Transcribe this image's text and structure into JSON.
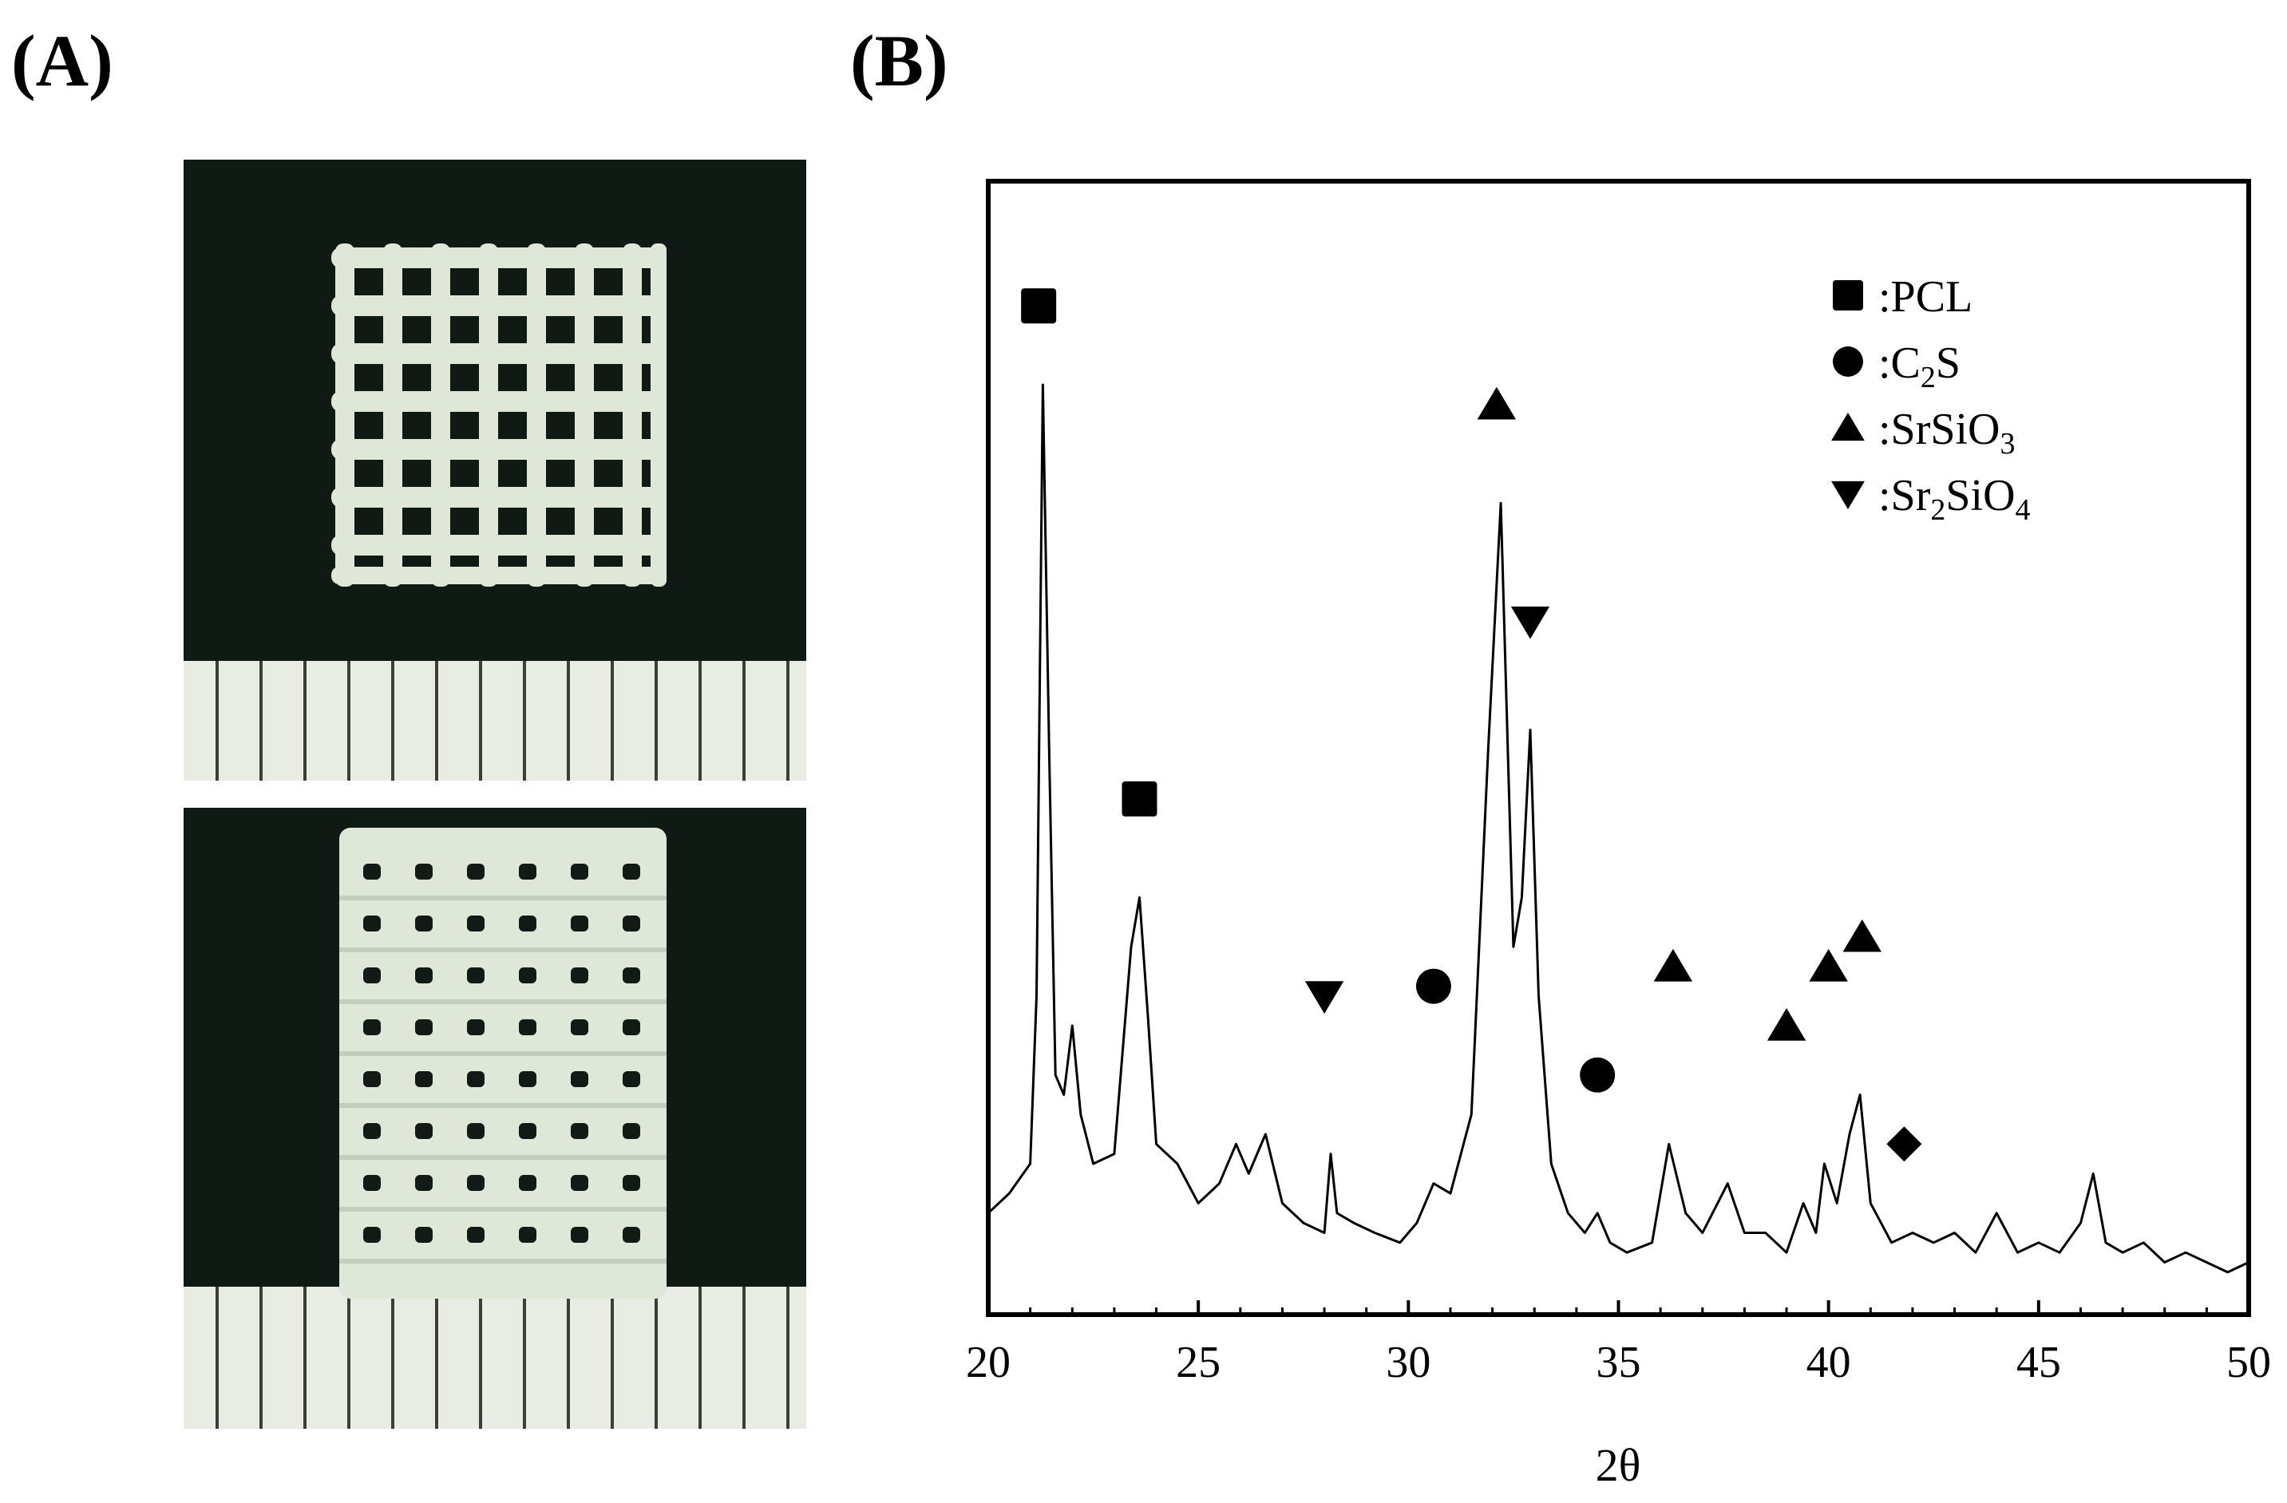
{
  "figure": {
    "panel_a_label": "(A)",
    "panel_b_label": "(B)"
  },
  "colors": {
    "photo_background": "#0f1a14",
    "scaffold": "#dfe7d9",
    "ruler": "#e8ece4",
    "plot_line": "#000000"
  },
  "chart_data": {
    "type": "line",
    "xlabel": "2θ",
    "ylabel": "",
    "xlim": [
      20,
      50
    ],
    "ylim": [
      0,
      100
    ],
    "x_ticks": [
      20,
      25,
      30,
      35,
      40,
      45,
      50
    ],
    "y_ticks_shown": false,
    "grid": false,
    "legend_position": "top-right",
    "legend": [
      {
        "marker": "square",
        "text": ":PCL"
      },
      {
        "marker": "circle",
        "text": ":C2S"
      },
      {
        "marker": "triangle-up",
        "text": ":SrSiO3"
      },
      {
        "marker": "triangle-down",
        "text": ":Sr2SiO4"
      }
    ],
    "series": [
      {
        "x": [
          20.0,
          20.5,
          21.0,
          21.15,
          21.3,
          21.45,
          21.6,
          21.8,
          22.0,
          22.2,
          22.5,
          23.0,
          23.4,
          23.6,
          23.8,
          24.0,
          24.5,
          25.0,
          25.5,
          25.9,
          26.2,
          26.6,
          27.0,
          27.5,
          28.0,
          28.15,
          28.3,
          28.7,
          29.2,
          29.8,
          30.2,
          30.6,
          31.0,
          31.5,
          31.9,
          32.2,
          32.5,
          32.7,
          32.9,
          33.1,
          33.4,
          33.8,
          34.2,
          34.5,
          34.8,
          35.2,
          35.8,
          36.2,
          36.6,
          37.0,
          37.6,
          38.0,
          38.5,
          39.0,
          39.4,
          39.7,
          39.9,
          40.2,
          40.5,
          40.75,
          41.0,
          41.5,
          42.0,
          42.5,
          43.0,
          43.5,
          44.0,
          44.5,
          45.0,
          45.5,
          46.0,
          46.3,
          46.6,
          47.0,
          47.5,
          48.0,
          48.5,
          49.0,
          49.5,
          50.0
        ],
        "y": [
          8,
          10,
          13,
          30,
          92,
          55,
          22,
          20,
          27,
          18,
          13,
          14,
          35,
          40,
          28,
          15,
          13,
          9,
          11,
          15,
          12,
          16,
          9,
          7,
          6,
          14,
          8,
          7,
          6,
          5,
          7,
          11,
          10,
          18,
          55,
          80,
          35,
          40,
          57,
          30,
          13,
          8,
          6,
          8,
          5,
          4,
          5,
          15,
          8,
          6,
          11,
          6,
          6,
          4,
          9,
          6,
          13,
          9,
          16,
          20,
          9,
          5,
          6,
          5,
          6,
          4,
          8,
          4,
          5,
          4,
          7,
          12,
          5,
          4,
          5,
          3,
          4,
          3,
          2,
          3
        ]
      }
    ],
    "annotations": [
      {
        "marker": "square",
        "x": 21.2,
        "y": 100
      },
      {
        "marker": "square",
        "x": 23.6,
        "y": 50
      },
      {
        "marker": "triangle-down",
        "x": 28.0,
        "y": 30
      },
      {
        "marker": "circle",
        "x": 30.6,
        "y": 31
      },
      {
        "marker": "triangle-up",
        "x": 32.1,
        "y": 90
      },
      {
        "marker": "triangle-down",
        "x": 32.9,
        "y": 68
      },
      {
        "marker": "circle",
        "x": 34.5,
        "y": 22
      },
      {
        "marker": "triangle-up",
        "x": 36.3,
        "y": 33
      },
      {
        "marker": "triangle-up",
        "x": 39.0,
        "y": 27
      },
      {
        "marker": "triangle-up",
        "x": 40.0,
        "y": 33
      },
      {
        "marker": "triangle-up",
        "x": 40.8,
        "y": 36
      },
      {
        "marker": "diamond",
        "x": 41.8,
        "y": 15
      }
    ]
  }
}
